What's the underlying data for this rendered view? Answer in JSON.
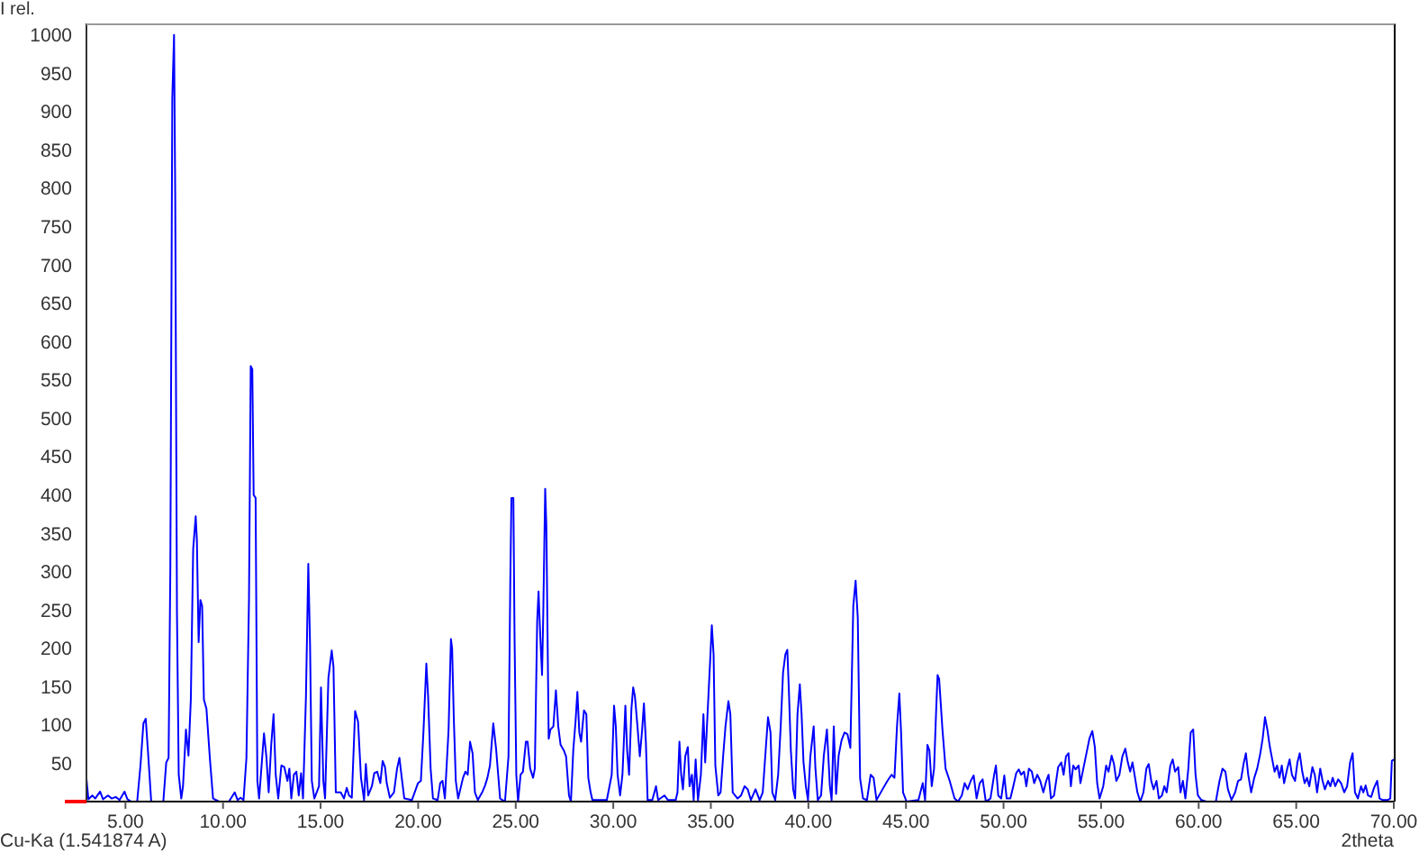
{
  "chart_data": {
    "type": "line",
    "xlabel": "2theta",
    "ylabel": "I rel.",
    "annotations": [
      "Cu-Ka (1.541874 A)"
    ],
    "color": "#0000ff",
    "xlim": [
      3,
      70
    ],
    "ylim": [
      0,
      1015
    ],
    "xticks": [
      {
        "value": 5,
        "label": "5.00"
      },
      {
        "value": 10,
        "label": "10.00"
      },
      {
        "value": 15,
        "label": "15.00"
      },
      {
        "value": 20,
        "label": "20.00"
      },
      {
        "value": 25,
        "label": "25.00"
      },
      {
        "value": 30,
        "label": "30.00"
      },
      {
        "value": 35,
        "label": "35.00"
      },
      {
        "value": 40,
        "label": "40.00"
      },
      {
        "value": 45,
        "label": "45.00"
      },
      {
        "value": 50,
        "label": "50.00"
      },
      {
        "value": 55,
        "label": "55.00"
      },
      {
        "value": 60,
        "label": "60.00"
      },
      {
        "value": 65,
        "label": "65.00"
      },
      {
        "value": 70,
        "label": "70.00"
      }
    ],
    "yticks": [
      50,
      100,
      150,
      200,
      250,
      300,
      350,
      400,
      450,
      500,
      550,
      600,
      650,
      700,
      750,
      800,
      850,
      900,
      950,
      1000
    ],
    "x": [
      3.0,
      3.1,
      3.3,
      3.45,
      3.7,
      3.85,
      4.1,
      4.3,
      4.5,
      4.7,
      4.95,
      5.1,
      5.3,
      5.6,
      5.77,
      5.92,
      6.04,
      6.17,
      6.32,
      6.94,
      7.09,
      7.21,
      7.3,
      7.4,
      7.49,
      7.55,
      7.64,
      7.73,
      7.86,
      7.95,
      8.1,
      8.23,
      8.35,
      8.47,
      8.6,
      8.66,
      8.75,
      8.84,
      8.93,
      9.02,
      9.15,
      9.33,
      9.49,
      9.8,
      10.3,
      10.6,
      10.75,
      10.9,
      11.05,
      11.2,
      11.33,
      11.42,
      11.5,
      11.57,
      11.67,
      11.76,
      11.85,
      12.0,
      12.1,
      12.22,
      12.34,
      12.47,
      12.59,
      12.7,
      12.83,
      12.99,
      13.14,
      13.3,
      13.4,
      13.5,
      13.63,
      13.76,
      13.88,
      14.0,
      14.1,
      14.25,
      14.37,
      14.46,
      14.55,
      14.68,
      14.92,
      15.02,
      15.14,
      15.23,
      15.4,
      15.57,
      15.66,
      15.78,
      16.03,
      16.2,
      16.34,
      16.46,
      16.6,
      16.77,
      16.92,
      17.07,
      17.23,
      17.32,
      17.44,
      17.63,
      17.75,
      17.9,
      18.06,
      18.18,
      18.3,
      18.39,
      18.55,
      18.76,
      18.92,
      19.04,
      19.16,
      19.29,
      19.68,
      19.99,
      20.14,
      20.27,
      20.42,
      20.51,
      20.64,
      20.76,
      21.0,
      21.13,
      21.25,
      21.37,
      21.56,
      21.68,
      21.74,
      21.83,
      21.93,
      22.05,
      22.3,
      22.42,
      22.54,
      22.66,
      22.79,
      22.91,
      23.06,
      23.28,
      23.43,
      23.55,
      23.68,
      23.85,
      24.0,
      24.2,
      24.45,
      24.63,
      24.72,
      24.78,
      24.88,
      24.94,
      25.03,
      25.12,
      25.25,
      25.37,
      25.52,
      25.61,
      25.74,
      25.89,
      25.98,
      26.1,
      26.17,
      26.26,
      26.35,
      26.41,
      26.51,
      26.57,
      26.69,
      26.78,
      26.93,
      27.06,
      27.18,
      27.3,
      27.46,
      27.58,
      27.73,
      27.83,
      27.95,
      28.07,
      28.16,
      28.26,
      28.35,
      28.5,
      28.62,
      28.72,
      28.84,
      28.93,
      29.21,
      29.67,
      29.92,
      30.04,
      30.13,
      30.22,
      30.35,
      30.47,
      30.62,
      30.71,
      30.81,
      30.93,
      31.02,
      31.11,
      31.24,
      31.36,
      31.48,
      31.57,
      31.67,
      31.76,
      32.0,
      32.19,
      32.3,
      32.62,
      32.8,
      33.2,
      33.29,
      33.39,
      33.48,
      33.57,
      33.69,
      33.82,
      33.91,
      34.03,
      34.12,
      34.22,
      34.34,
      34.49,
      34.62,
      34.71,
      34.83,
      34.95,
      35.05,
      35.14,
      35.23,
      35.38,
      35.5,
      35.63,
      35.75,
      35.9,
      36.0,
      36.12,
      36.37,
      36.55,
      36.73,
      36.89,
      37.05,
      37.29,
      37.5,
      37.66,
      37.81,
      37.93,
      38.06,
      38.15,
      38.3,
      38.45,
      38.58,
      38.7,
      38.82,
      38.92,
      39.01,
      39.1,
      39.22,
      39.32,
      39.44,
      39.56,
      39.65,
      39.75,
      39.87,
      39.98,
      40.1,
      40.27,
      40.36,
      40.48,
      40.65,
      40.79,
      40.95,
      41.1,
      41.19,
      41.3,
      41.42,
      41.55,
      41.7,
      41.85,
      42.0,
      42.15,
      42.3,
      42.42,
      42.53,
      42.65,
      42.8,
      43.0,
      43.19,
      43.34,
      43.49,
      43.8,
      44.05,
      44.26,
      44.41,
      44.54,
      44.66,
      44.75,
      44.85,
      45.03,
      45.64,
      45.86,
      45.98,
      46.1,
      46.2,
      46.32,
      46.44,
      46.55,
      46.62,
      46.7,
      46.87,
      47.03,
      47.24,
      47.49,
      47.67,
      47.86,
      48.01,
      48.16,
      48.32,
      48.47,
      48.62,
      48.78,
      48.93,
      49.09,
      49.33,
      49.52,
      49.61,
      49.73,
      49.88,
      50.04,
      50.16,
      50.35,
      50.5,
      50.65,
      50.78,
      50.9,
      51.05,
      51.17,
      51.3,
      51.45,
      51.57,
      51.73,
      51.88,
      52.04,
      52.19,
      52.31,
      52.43,
      52.59,
      52.8,
      52.96,
      53.08,
      53.2,
      53.33,
      53.45,
      53.57,
      53.69,
      53.85,
      53.94,
      54.09,
      54.25,
      54.4,
      54.55,
      54.68,
      54.8,
      54.92,
      55.11,
      55.26,
      55.38,
      55.54,
      55.66,
      55.78,
      55.94,
      56.09,
      56.24,
      56.37,
      56.49,
      56.61,
      56.74,
      56.86,
      57.01,
      57.17,
      57.32,
      57.44,
      57.57,
      57.69,
      57.84,
      57.96,
      58.12,
      58.24,
      58.36,
      58.55,
      58.67,
      58.79,
      58.95,
      59.07,
      59.19,
      59.32,
      59.47,
      59.59,
      59.72,
      59.84,
      59.96,
      60.14,
      60.39,
      60.88,
      61.07,
      61.22,
      61.37,
      61.5,
      61.68,
      61.87,
      62.02,
      62.17,
      62.3,
      62.42,
      62.54,
      62.69,
      62.85,
      63.0,
      63.16,
      63.28,
      63.4,
      63.52,
      63.65,
      63.77,
      63.89,
      64.02,
      64.14,
      64.26,
      64.38,
      64.54,
      64.66,
      64.78,
      64.94,
      65.06,
      65.18,
      65.31,
      65.43,
      65.55,
      65.67,
      65.83,
      65.95,
      66.07,
      66.23,
      66.35,
      66.47,
      66.63,
      66.75,
      66.87,
      67.0,
      67.15,
      67.3,
      67.46,
      67.61,
      67.76,
      67.89,
      68.01,
      68.16,
      68.32,
      68.44,
      68.56,
      68.68,
      68.84,
      68.99,
      69.15,
      69.27,
      69.45,
      69.67,
      69.82,
      69.9,
      70.0
    ],
    "values": [
      30,
      3,
      8,
      4,
      13,
      3,
      8,
      4,
      6,
      2,
      13,
      3,
      0,
      0,
      47,
      102,
      108,
      59,
      0,
      0,
      51,
      57,
      305,
      917,
      1000,
      790,
      245,
      35,
      4,
      20,
      94,
      60,
      133,
      329,
      372,
      341,
      208,
      263,
      255,
      133,
      121,
      55,
      4,
      0,
      0,
      12,
      2,
      5,
      2,
      57,
      263,
      568,
      564,
      400,
      396,
      27,
      4,
      55,
      89,
      59,
      12,
      74,
      114,
      35,
      4,
      47,
      45,
      27,
      43,
      4,
      35,
      39,
      8,
      37,
      4,
      137,
      310,
      204,
      27,
      4,
      20,
      149,
      27,
      4,
      161,
      197,
      176,
      12,
      12,
      4,
      18,
      8,
      5,
      118,
      104,
      31,
      2,
      49,
      8,
      20,
      37,
      39,
      24,
      53,
      45,
      24,
      5,
      12,
      43,
      57,
      31,
      4,
      2,
      24,
      27,
      90,
      180,
      137,
      43,
      4,
      2,
      24,
      27,
      4,
      94,
      212,
      200,
      106,
      27,
      4,
      31,
      39,
      35,
      78,
      63,
      12,
      2,
      12,
      21,
      31,
      47,
      102,
      67,
      4,
      0,
      59,
      282,
      396,
      396,
      215,
      35,
      0,
      35,
      39,
      78,
      78,
      43,
      31,
      43,
      235,
      274,
      215,
      165,
      243,
      408,
      360,
      82,
      94,
      98,
      145,
      98,
      74,
      67,
      59,
      8,
      0,
      67,
      106,
      143,
      90,
      78,
      119,
      114,
      31,
      12,
      2,
      2,
      2,
      35,
      125,
      98,
      35,
      8,
      35,
      125,
      67,
      35,
      121,
      149,
      137,
      98,
      59,
      94,
      128,
      78,
      2,
      2,
      20,
      2,
      8,
      2,
      2,
      12,
      78,
      35,
      16,
      59,
      71,
      20,
      35,
      2,
      55,
      2,
      35,
      114,
      51,
      114,
      176,
      230,
      192,
      47,
      8,
      12,
      59,
      98,
      131,
      114,
      12,
      4,
      8,
      20,
      16,
      2,
      16,
      2,
      12,
      67,
      110,
      90,
      12,
      2,
      35,
      98,
      168,
      192,
      198,
      137,
      67,
      16,
      4,
      114,
      153,
      114,
      51,
      20,
      2,
      59,
      98,
      43,
      2,
      8,
      60,
      94,
      20,
      2,
      98,
      10,
      60,
      80,
      90,
      88,
      70,
      255,
      288,
      240,
      30,
      4,
      2,
      35,
      31,
      2,
      16,
      27,
      35,
      31,
      98,
      141,
      90,
      12,
      0,
      2,
      24,
      2,
      74,
      67,
      20,
      43,
      121,
      165,
      160,
      94,
      43,
      27,
      4,
      0,
      8,
      24,
      16,
      27,
      34,
      4,
      24,
      29,
      0,
      4,
      35,
      47,
      8,
      4,
      34,
      4,
      4,
      20,
      37,
      42,
      35,
      39,
      20,
      43,
      39,
      24,
      35,
      27,
      12,
      27,
      35,
      4,
      8,
      45,
      51,
      35,
      59,
      63,
      20,
      47,
      42,
      47,
      24,
      43,
      63,
      82,
      92,
      71,
      24,
      4,
      20,
      47,
      39,
      60,
      49,
      27,
      35,
      59,
      69,
      51,
      39,
      51,
      31,
      12,
      0,
      12,
      43,
      49,
      27,
      16,
      27,
      4,
      8,
      20,
      12,
      47,
      55,
      39,
      45,
      12,
      27,
      4,
      43,
      90,
      94,
      35,
      8,
      2,
      0,
      0,
      27,
      43,
      39,
      16,
      2,
      12,
      27,
      29,
      49,
      63,
      35,
      12,
      31,
      43,
      63,
      82,
      110,
      94,
      71,
      55,
      39,
      47,
      31,
      47,
      24,
      43,
      55,
      35,
      27,
      51,
      63,
      39,
      24,
      31,
      20,
      45,
      35,
      12,
      43,
      27,
      16,
      27,
      20,
      31,
      20,
      29,
      24,
      12,
      20,
      51,
      63,
      12,
      4,
      20,
      12,
      21,
      8,
      6,
      18,
      27,
      4,
      2,
      2,
      4,
      53,
      55
    ]
  }
}
